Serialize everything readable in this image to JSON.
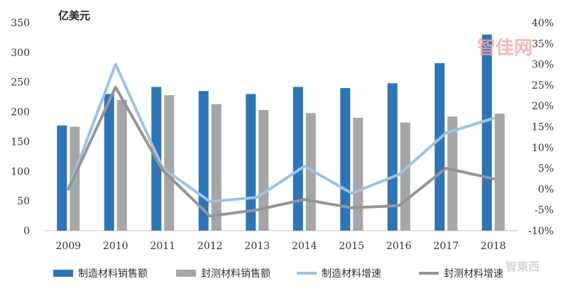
{
  "chart_data": {
    "type": "bar",
    "unit_label": "亿美元",
    "categories": [
      "2009",
      "2010",
      "2011",
      "2012",
      "2013",
      "2014",
      "2015",
      "2016",
      "2017",
      "2018"
    ],
    "left_axis": {
      "ylim": [
        0,
        350
      ],
      "ticks": [
        "0",
        "50",
        "100",
        "150",
        "200",
        "250",
        "300",
        "350"
      ]
    },
    "right_axis": {
      "ylim": [
        -10,
        40
      ],
      "ticks": [
        "-10%",
        "-5%",
        "0%",
        "5%",
        "10%",
        "15%",
        "20%",
        "25%",
        "30%",
        "35%",
        "40%"
      ]
    },
    "bar_series": [
      {
        "name": "制造材料销售额",
        "color": "#2e75b6",
        "values": [
          177,
          230,
          242,
          235,
          230,
          242,
          240,
          248,
          282,
          330
        ]
      },
      {
        "name": "封测材料销售额",
        "color": "#a6a6a6",
        "values": [
          175,
          220,
          228,
          213,
          203,
          198,
          190,
          182,
          192,
          197
        ]
      }
    ],
    "line_series": [
      {
        "name": "制造材料增速",
        "color": "#9dc3e6",
        "values": [
          0,
          30,
          5,
          -3,
          -2,
          5.5,
          -1,
          3.5,
          13.5,
          17
        ]
      },
      {
        "name": "封测材料增速",
        "color": "#959595",
        "values": [
          0,
          24.5,
          4.5,
          -6.5,
          -5,
          -2.5,
          -4.5,
          -4,
          5,
          2.5
        ]
      }
    ],
    "legend_position": "bottom",
    "grid": false
  },
  "watermarks": {
    "top": "智佳网",
    "bottom": "智東西"
  }
}
